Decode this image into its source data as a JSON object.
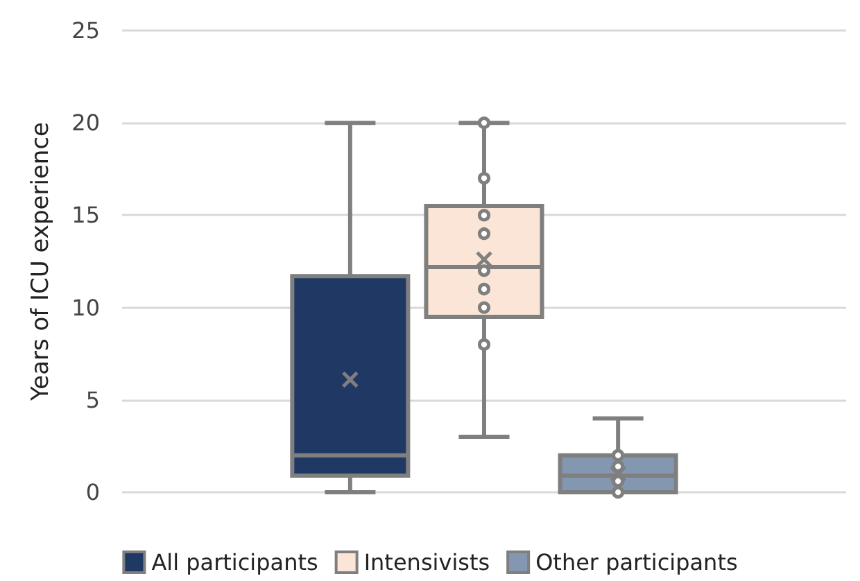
{
  "chart_data": {
    "type": "box",
    "ylabel": "Years of ICU experience",
    "categories": [
      null
    ],
    "series": [
      {
        "name": "All participants",
        "color": "#203864",
        "boxes": [
          {
            "low": 0,
            "q1": 0.9,
            "median": 2,
            "q3": 11.7,
            "high": 20,
            "mean": 6.1
          }
        ]
      },
      {
        "name": "Intensivists",
        "color": "#fbe5d6",
        "boxes": [
          {
            "low": 3,
            "q1": 9.5,
            "median": 12.2,
            "q3": 15.5,
            "high": 20,
            "mean": 12.6
          }
        ]
      },
      {
        "type": "scatter",
        "color": "#7f7f7f",
        "x": [
          null,
          null,
          null,
          null,
          null,
          null,
          null,
          null
        ],
        "values": [
          20,
          17,
          15,
          14,
          12,
          11,
          10,
          8
        ]
      },
      {
        "name": "Other participants",
        "color": "#8497b0",
        "boxes": [
          {
            "low": 0,
            "q1": 0,
            "median": 0.9,
            "q3": 2,
            "high": 4,
            "mean": 1
          }
        ]
      },
      {
        "type": "scatter",
        "color": "#7f7f7f",
        "x": [
          null,
          null,
          null,
          null
        ],
        "values": [
          2,
          1.4,
          0.6,
          0
        ]
      }
    ],
    "ylim": [
      0,
      25
    ],
    "yticks": [
      0,
      5,
      10,
      15,
      20,
      25
    ],
    "grid": "y",
    "legend": "bottom",
    "marker": "circle"
  }
}
